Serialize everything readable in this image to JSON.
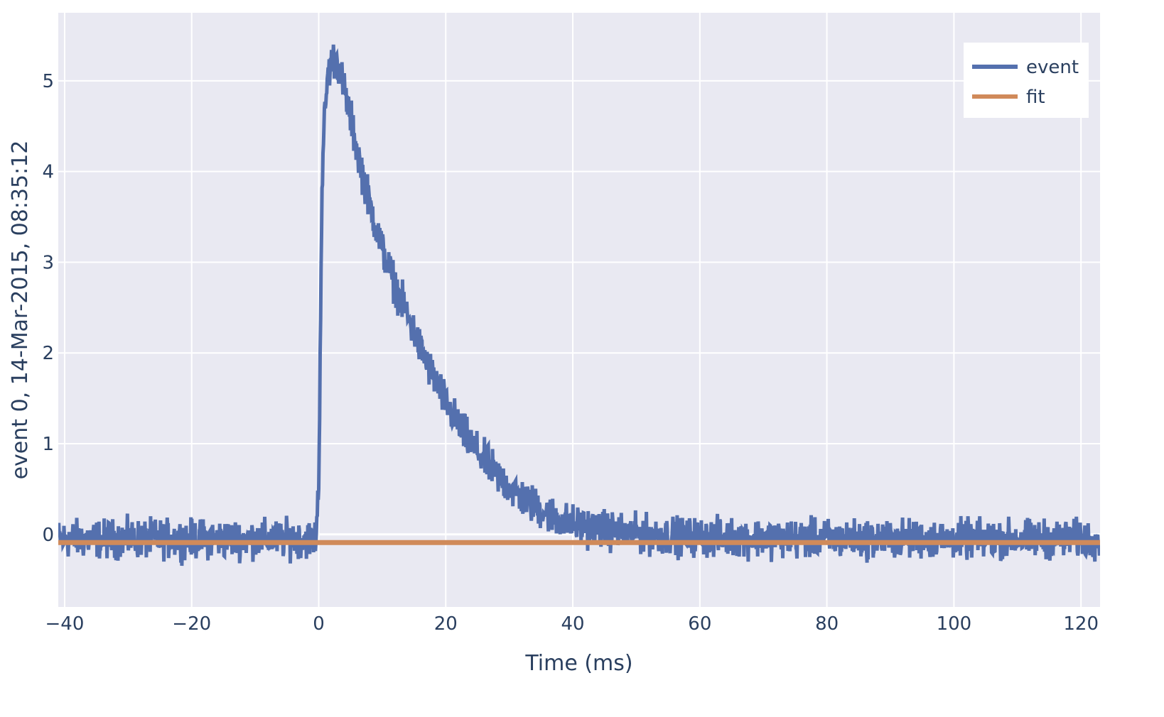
{
  "chart_data": {
    "type": "line",
    "xlabel": "Time (ms)",
    "ylabel": "event 0, 14-Mar-2015, 08:35:12",
    "xlim": [
      -41,
      123
    ],
    "ylim": [
      -0.8,
      5.75
    ],
    "x_ticks": [
      -40,
      -20,
      0,
      20,
      40,
      60,
      80,
      100,
      120
    ],
    "x_tick_labels": [
      "−40",
      "−20",
      "0",
      "20",
      "40",
      "60",
      "80",
      "100",
      "120"
    ],
    "y_ticks": [
      0,
      1,
      2,
      3,
      4,
      5
    ],
    "y_tick_labels": [
      "0",
      "1",
      "2",
      "3",
      "4",
      "5"
    ],
    "grid": true,
    "legend_position": "top-right",
    "colors": {
      "event": "#5470ae",
      "fit": "#d08a5a",
      "plot_bg": "#e9e9f2",
      "grid": "#ffffff"
    },
    "series": [
      {
        "name": "event",
        "color": "#5470ae",
        "x": [
          -41,
          -35,
          -30,
          -25,
          -20,
          -15,
          -10,
          -5,
          -0.5,
          0,
          0.5,
          1,
          1.5,
          2,
          2.5,
          3,
          4,
          5,
          6,
          7,
          8,
          9,
          10,
          12,
          14,
          16,
          18,
          20,
          22,
          24,
          26,
          28,
          30,
          32,
          35,
          38,
          40,
          45,
          50,
          60,
          70,
          80,
          90,
          100,
          110,
          123
        ],
        "y": [
          -0.05,
          -0.05,
          -0.05,
          -0.05,
          -0.05,
          -0.05,
          -0.05,
          -0.05,
          -0.05,
          0.5,
          3.8,
          4.7,
          5.1,
          5.2,
          5.25,
          5.2,
          4.9,
          4.6,
          4.25,
          3.95,
          3.65,
          3.4,
          3.15,
          2.75,
          2.4,
          2.05,
          1.75,
          1.45,
          1.2,
          1.0,
          0.82,
          0.66,
          0.52,
          0.4,
          0.27,
          0.16,
          0.11,
          0.05,
          0.0,
          -0.03,
          -0.04,
          -0.05,
          -0.05,
          -0.05,
          -0.05,
          -0.05
        ],
        "noise_amplitude": 0.13
      },
      {
        "name": "fit",
        "color": "#d08a5a",
        "x": [
          -41,
          123
        ],
        "y": [
          -0.09,
          -0.09
        ]
      }
    ]
  }
}
